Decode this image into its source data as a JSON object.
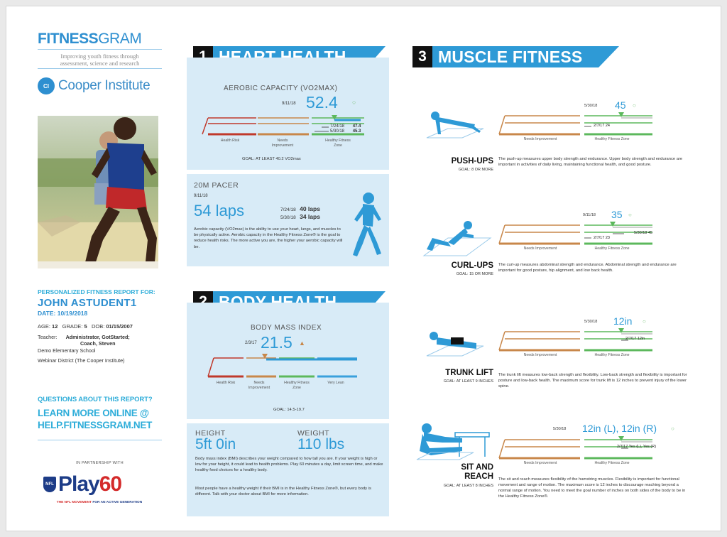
{
  "brand": {
    "logo_bold": "FITNESS",
    "logo_light": "GRAM",
    "tagline_1": "Improving youth fitness through",
    "tagline_2": "assessment, science and research",
    "institute": "Cooper Institute",
    "seal_text": "CI"
  },
  "student": {
    "label": "PERSONALIZED FITNESS REPORT FOR:",
    "name": "JOHN ASTUDENT1",
    "date_label": "DATE:",
    "date": "10/19/2018",
    "age_label": "AGE:",
    "age": "12",
    "grade_label": "GRADE:",
    "grade": "5",
    "dob_label": "DOB:",
    "dob": "01/15/2007",
    "teacher_label": "Teacher:",
    "teacher_1": "Administrator, GotStarted;",
    "teacher_2": "Coach, Steven",
    "school": "Demo Elementary School",
    "district": "Webinar District (The Cooper Institute)"
  },
  "contact": {
    "questions": "QUESTIONS ABOUT THIS REPORT?",
    "learn_1": "LEARN MORE ONLINE @",
    "learn_2": "HELP.FITNESSGRAM.NET"
  },
  "partner": {
    "label": "IN PARTNERSHIP WITH",
    "nfl": "NFL",
    "play": "Play",
    "sixty": "60",
    "movement": "THE NFL MOVEMENT",
    "movement_rest": "FOR AN ACTIVE GENERATION"
  },
  "heart": {
    "num": "1",
    "title": "HEART HEALTH",
    "aerobic": {
      "title": "AEROBIC CAPACITY (VO2MAX)",
      "date": "9/11/18",
      "score": "52.4",
      "prior1_date": "7/24/18",
      "prior1_value": "47.4",
      "prior2_date": "5/30/18",
      "prior2_value": "45.3",
      "zone_1": "Health Risk",
      "zone_2": "Needs Improvement",
      "zone_3": "Healthy Fitness Zone",
      "goal": "GOAL: AT LEAST 40.2 VO2max"
    },
    "pacer": {
      "title": "20M PACER",
      "date": "9/11/18",
      "score": "54 laps",
      "prior1_date": "7/24/18",
      "prior1_value": "40 laps",
      "prior2_date": "5/30/18",
      "prior2_value": "34 laps",
      "desc": "Aerobic capacity (VO2max) is the ability to use your heart, lungs, and muscles to be physically active. Aerobic capacity in the Healthy Fitness Zone® is the goal to reduce health risks. The more active you are, the higher your aerobic capacity will be."
    }
  },
  "body": {
    "num": "2",
    "title": "BODY HEALTH",
    "bmi": {
      "title": "BODY MASS INDEX",
      "date": "2/3/17",
      "score": "21.5",
      "zone_1": "Health Risk",
      "zone_2": "Needs Improvement",
      "zone_3": "Healthy Fitness Zone",
      "zone_4": "Very Lean",
      "goal": "GOAL: 14.5-19.7"
    },
    "hw": {
      "height_label": "HEIGHT",
      "height": "5ft 0in",
      "weight_label": "WEIGHT",
      "weight": "110 lbs",
      "desc_1": "Body mass index (BMI) describes your weight compared to how tall you are. If your weight is high or low for your height, it could lead to health problems. Play 60 minutes a day, limit screen time, and make healthy food choices for a healthy body.",
      "desc_2": "Most people have a healthy weight if their BMI is in the Healthy Fitness Zone®, but every body is different. Talk with your doctor about BMI for more information."
    }
  },
  "muscle": {
    "num": "3",
    "title": "MUSCLE FITNESS",
    "zone_ni": "Needs Improvement",
    "zone_hfz": "Healthy Fitness Zone",
    "items": [
      {
        "name": "PUSH-UPS",
        "goal": "GOAL: 8 OR MORE",
        "date": "5/30/18",
        "score": "45",
        "prior1": "2/7/17  24",
        "prior2": "",
        "desc": "The push-up measures upper body strength and endurance. Upper body strength and endurance are important in activities of daily living, maintaining functional health, and good posture."
      },
      {
        "name": "CURL-UPS",
        "goal": "GOAL: 15 OR MORE",
        "date": "9/11/18",
        "score": "35",
        "prior1": "5/30/18  45",
        "prior2": "2/7/17  23",
        "desc": "The curl-up measures abdominal strength and endurance. Abdominal strength and endurance are important for good posture, hip alignment, and low back health."
      },
      {
        "name": "TRUNK LIFT",
        "goal": "GOAL: AT LEAST 9 INCHES",
        "date": "5/30/18",
        "score": "12in",
        "prior1": "2/7/17  12in",
        "prior2": "",
        "desc": "The trunk lift measures low-back strength and flexibility. Low-back strength and flexibility is important for posture and low-back health. The maximum score for trunk lift is 12 inches to prevent injury of the lower spine."
      },
      {
        "name_1": "SIT AND",
        "name_2": "REACH",
        "goal": "GOAL: AT LEAST 8 INCHES",
        "date": "5/30/18",
        "score": "12in (L), 12in (R)",
        "prior1": "2/7/17  Yes (L), Yes (R)",
        "prior2": "",
        "desc": "The sit and reach measures flexibility of the hamstring muscles. Flexibility is important for functional movement and range of motion. The maximum score is 12 inches to discourage reaching beyond a normal range of motion. You need to meet the goal number of inches on both sides of the body to be in the Healthy Fitness Zone®."
      }
    ]
  },
  "colors": {
    "brand_blue": "#2e9ad6",
    "panel_bg": "#d8ebf7",
    "health_risk": "#c0392b",
    "needs_improvement": "#c8874a",
    "healthy_zone": "#5cb85c",
    "very_lean": "#3aa0dc"
  }
}
